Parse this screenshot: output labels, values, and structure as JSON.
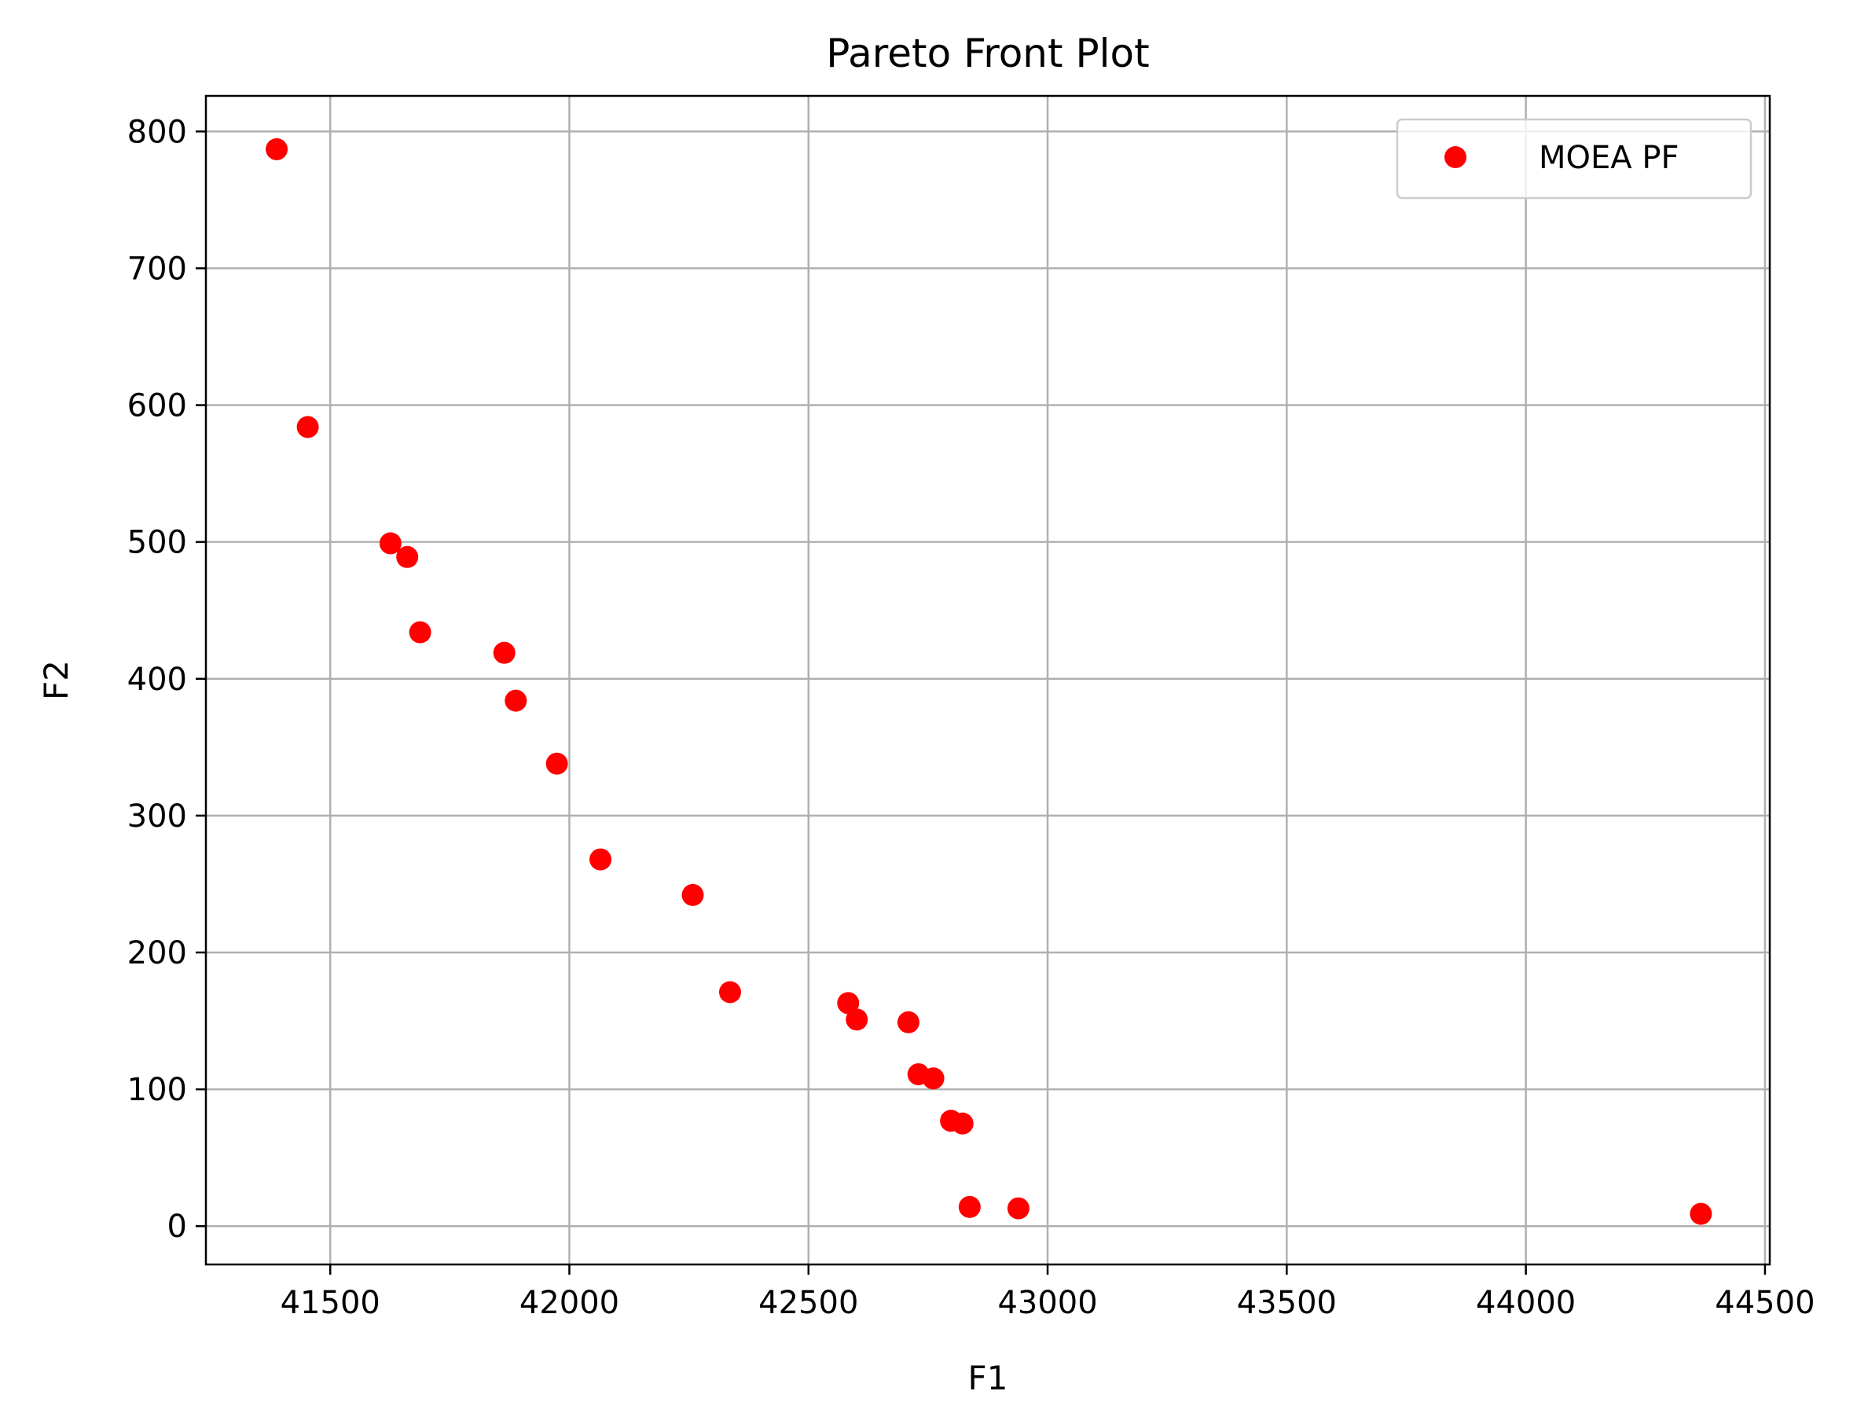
{
  "chart_data": {
    "type": "scatter",
    "title": "Pareto Front Plot",
    "xlabel": "F1",
    "ylabel": "F2",
    "xlim": [
      41240,
      44510
    ],
    "ylim": [
      -28,
      826
    ],
    "xticks": [
      41500,
      42000,
      42500,
      43000,
      43500,
      44000,
      44500
    ],
    "yticks": [
      0,
      100,
      200,
      300,
      400,
      500,
      600,
      700,
      800
    ],
    "grid": true,
    "legend": {
      "placement": "top-right",
      "entries": [
        "MOEA PF"
      ]
    },
    "series": [
      {
        "name": "MOEA PF",
        "color": "#ff0000",
        "marker": "circle",
        "points": [
          {
            "x": 41388,
            "y": 787
          },
          {
            "x": 41453,
            "y": 584
          },
          {
            "x": 41626,
            "y": 499
          },
          {
            "x": 41661,
            "y": 489
          },
          {
            "x": 41688,
            "y": 434
          },
          {
            "x": 41864,
            "y": 419
          },
          {
            "x": 41888,
            "y": 384
          },
          {
            "x": 41974,
            "y": 338
          },
          {
            "x": 42065,
            "y": 268
          },
          {
            "x": 42258,
            "y": 242
          },
          {
            "x": 42336,
            "y": 171
          },
          {
            "x": 42583,
            "y": 163
          },
          {
            "x": 42601,
            "y": 151
          },
          {
            "x": 42709,
            "y": 149
          },
          {
            "x": 42730,
            "y": 111
          },
          {
            "x": 42761,
            "y": 108
          },
          {
            "x": 42798,
            "y": 77
          },
          {
            "x": 42822,
            "y": 75
          },
          {
            "x": 42837,
            "y": 14
          },
          {
            "x": 42939,
            "y": 13
          },
          {
            "x": 44366,
            "y": 9
          }
        ]
      }
    ]
  }
}
